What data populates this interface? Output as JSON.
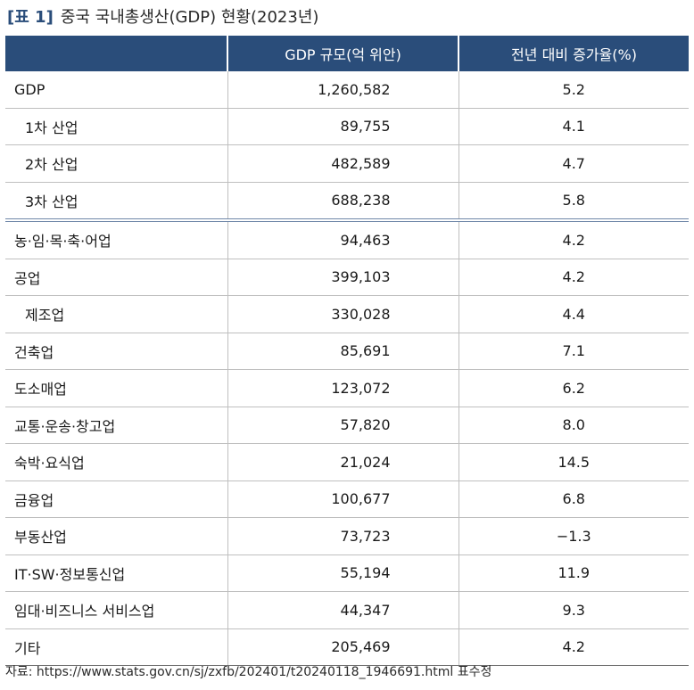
{
  "title": {
    "label": "[표 1]",
    "text": "중국 국내총생산(GDP) 현황(2023년)"
  },
  "table": {
    "headers": [
      "",
      "GDP 규모(억 위안)",
      "전년 대비 증가율(%)"
    ],
    "rows": [
      {
        "name": "GDP",
        "gdp": "1,260,582",
        "rate": "5.2",
        "indent": false
      },
      {
        "name": "1차 산업",
        "gdp": "89,755",
        "rate": "4.1",
        "indent": true
      },
      {
        "name": "2차 산업",
        "gdp": "482,589",
        "rate": "4.7",
        "indent": true
      },
      {
        "name": "3차 산업",
        "gdp": "688,238",
        "rate": "5.8",
        "indent": true
      },
      {
        "name": "농·임·목·축·어업",
        "gdp": "94,463",
        "rate": "4.2",
        "indent": false
      },
      {
        "name": "공업",
        "gdp": "399,103",
        "rate": "4.2",
        "indent": false
      },
      {
        "name": "제조업",
        "gdp": "330,028",
        "rate": "4.4",
        "indent": true
      },
      {
        "name": "건축업",
        "gdp": "85,691",
        "rate": "7.1",
        "indent": false
      },
      {
        "name": "도소매업",
        "gdp": "123,072",
        "rate": "6.2",
        "indent": false
      },
      {
        "name": "교통·운송·창고업",
        "gdp": "57,820",
        "rate": "8.0",
        "indent": false
      },
      {
        "name": "숙박·요식업",
        "gdp": "21,024",
        "rate": "14.5",
        "indent": false
      },
      {
        "name": "금융업",
        "gdp": "100,677",
        "rate": "6.8",
        "indent": false
      },
      {
        "name": "부동산업",
        "gdp": "73,723",
        "rate": "−1.3",
        "indent": false
      },
      {
        "name": "IT·SW·정보통신업",
        "gdp": "55,194",
        "rate": "11.9",
        "indent": false
      },
      {
        "name": "임대·비즈니스 서비스업",
        "gdp": "44,347",
        "rate": "9.3",
        "indent": false
      },
      {
        "name": "기타",
        "gdp": "205,469",
        "rate": "4.2",
        "indent": false
      }
    ]
  },
  "source": "자료: https://www.stats.gov.cn/sj/zxfb/202401/t20240118_1946691.html 표수정",
  "colors": {
    "header_bg": "#2a4d7a",
    "title_label": "#2a4d7a",
    "grid": "#bfbfbf",
    "section_divider": "#6f87a8"
  }
}
